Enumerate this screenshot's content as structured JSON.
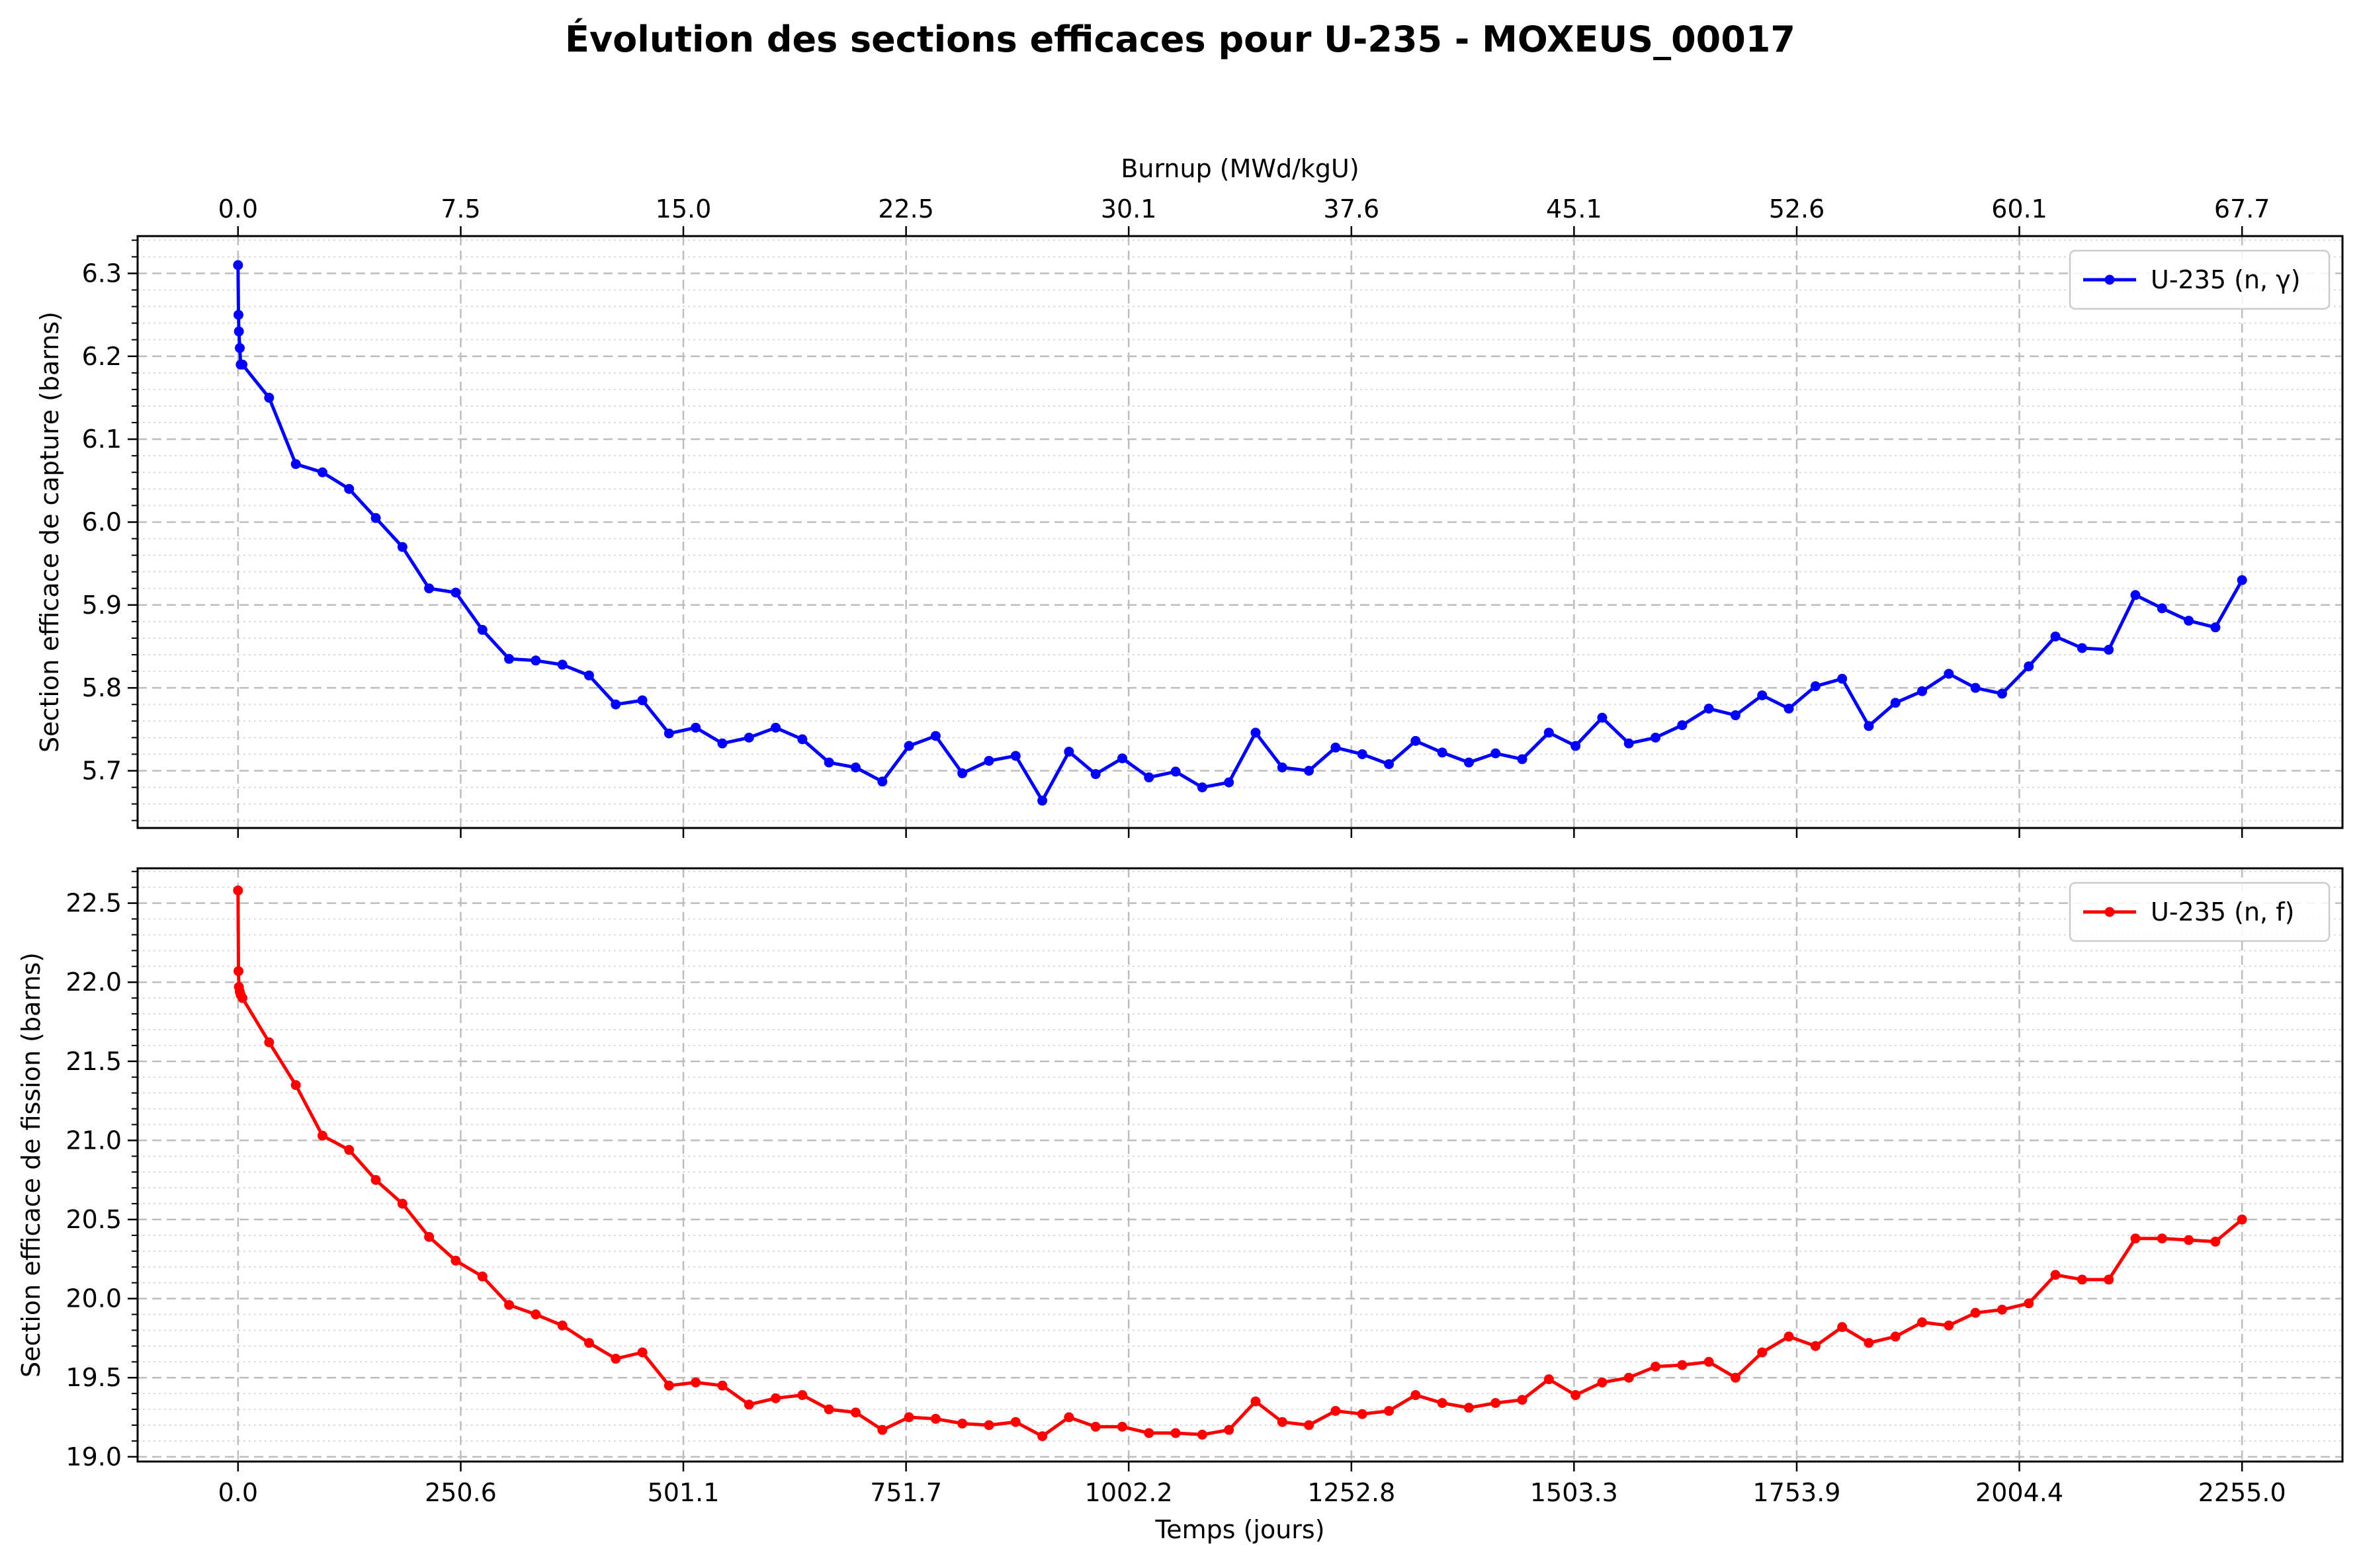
{
  "chart_data": {
    "title": "Évolution des sections efficaces pour U-235 - MOXEUS_00017",
    "shared": {
      "x_label": "Temps (jours)",
      "top_axis_label": "Burnup (MWd/kgU)",
      "x_ticks": [
        "0.0",
        "250.6",
        "501.1",
        "751.7",
        "1002.2",
        "1252.8",
        "1503.3",
        "1753.9",
        "2004.4",
        "2255.0"
      ],
      "burnup_ticks": [
        "0.0",
        "7.5",
        "15.0",
        "22.5",
        "30.1",
        "37.6",
        "45.1",
        "52.6",
        "60.1",
        "67.7"
      ],
      "x_tick_values": [
        0,
        250.6,
        501.1,
        751.7,
        1002.2,
        1252.8,
        1503.3,
        1753.9,
        2004.4,
        2255.0
      ],
      "xlim": [
        -113,
        2368
      ],
      "x": [
        0,
        0.5,
        1,
        2,
        3,
        5,
        35,
        65,
        95,
        125,
        155,
        185,
        215,
        245,
        275,
        305,
        335,
        365,
        395,
        425,
        455,
        485,
        515,
        545,
        575,
        605,
        635,
        665,
        695,
        725,
        755,
        785,
        815,
        845,
        875,
        905,
        935,
        965,
        995,
        1025,
        1055,
        1085,
        1115,
        1145,
        1175,
        1205,
        1235,
        1265,
        1295,
        1325,
        1355,
        1385,
        1415,
        1445,
        1475,
        1505,
        1535,
        1565,
        1595,
        1625,
        1655,
        1685,
        1715,
        1745,
        1775,
        1805,
        1835,
        1865,
        1895,
        1925,
        1955,
        1985,
        2015,
        2045,
        2075,
        2105,
        2135,
        2165,
        2195,
        2225,
        2255
      ]
    },
    "charts": [
      {
        "type": "line",
        "ylabel": "Section efficace de capture (barns)",
        "y_ticks": [
          5.7,
          5.8,
          5.9,
          6.0,
          6.1,
          6.2,
          6.3
        ],
        "y_tick_labels": [
          "5.7",
          "5.8",
          "5.9",
          "6.0",
          "6.1",
          "6.2",
          "6.3"
        ],
        "ylim": [
          5.631,
          6.345
        ],
        "grid": true,
        "legend": "top-right",
        "series": [
          {
            "name": "U-235 (n, γ)",
            "color": "#0000ff",
            "values": [
              6.31,
              6.25,
              6.23,
              6.21,
              6.19,
              6.19,
              6.15,
              6.07,
              6.06,
              6.04,
              6.005,
              5.97,
              5.92,
              5.915,
              5.87,
              5.835,
              5.833,
              5.828,
              5.815,
              5.78,
              5.785,
              5.745,
              5.752,
              5.733,
              5.74,
              5.752,
              5.738,
              5.71,
              5.704,
              5.687,
              5.73,
              5.742,
              5.697,
              5.712,
              5.718,
              5.664,
              5.723,
              5.696,
              5.715,
              5.692,
              5.699,
              5.68,
              5.686,
              5.746,
              5.704,
              5.7,
              5.728,
              5.72,
              5.708,
              5.736,
              5.722,
              5.71,
              5.721,
              5.714,
              5.746,
              5.73,
              5.764,
              5.733,
              5.74,
              5.755,
              5.775,
              5.767,
              5.791,
              5.775,
              5.802,
              5.811,
              5.754,
              5.782,
              5.796,
              5.817,
              5.8,
              5.793,
              5.826,
              5.862,
              5.848,
              5.846,
              5.912,
              5.896,
              5.881,
              5.873,
              5.93
            ]
          }
        ]
      },
      {
        "type": "line",
        "ylabel": "Section efficace de fission (barns)",
        "y_ticks": [
          19.0,
          19.5,
          20.0,
          20.5,
          21.0,
          21.5,
          22.0,
          22.5
        ],
        "y_tick_labels": [
          "19.0",
          "19.5",
          "20.0",
          "20.5",
          "21.0",
          "21.5",
          "22.0",
          "22.5"
        ],
        "ylim": [
          18.97,
          22.72
        ],
        "grid": true,
        "legend": "top-right",
        "series": [
          {
            "name": "U-235 (n, f)",
            "color": "#ff0000",
            "values": [
              22.58,
              22.07,
              21.97,
              21.94,
              21.92,
              21.9,
              21.62,
              21.35,
              21.03,
              20.94,
              20.75,
              20.6,
              20.39,
              20.24,
              20.14,
              19.96,
              19.9,
              19.83,
              19.72,
              19.62,
              19.66,
              19.45,
              19.47,
              19.45,
              19.33,
              19.37,
              19.39,
              19.3,
              19.28,
              19.17,
              19.25,
              19.24,
              19.21,
              19.2,
              19.22,
              19.13,
              19.25,
              19.19,
              19.19,
              19.15,
              19.15,
              19.14,
              19.17,
              19.35,
              19.22,
              19.2,
              19.29,
              19.27,
              19.29,
              19.39,
              19.34,
              19.31,
              19.34,
              19.36,
              19.49,
              19.39,
              19.47,
              19.5,
              19.57,
              19.58,
              19.6,
              19.5,
              19.66,
              19.76,
              19.7,
              19.82,
              19.72,
              19.76,
              19.85,
              19.83,
              19.91,
              19.93,
              19.97,
              20.15,
              20.12,
              20.12,
              20.38,
              20.38,
              20.37,
              20.36,
              20.5
            ]
          }
        ]
      }
    ]
  }
}
